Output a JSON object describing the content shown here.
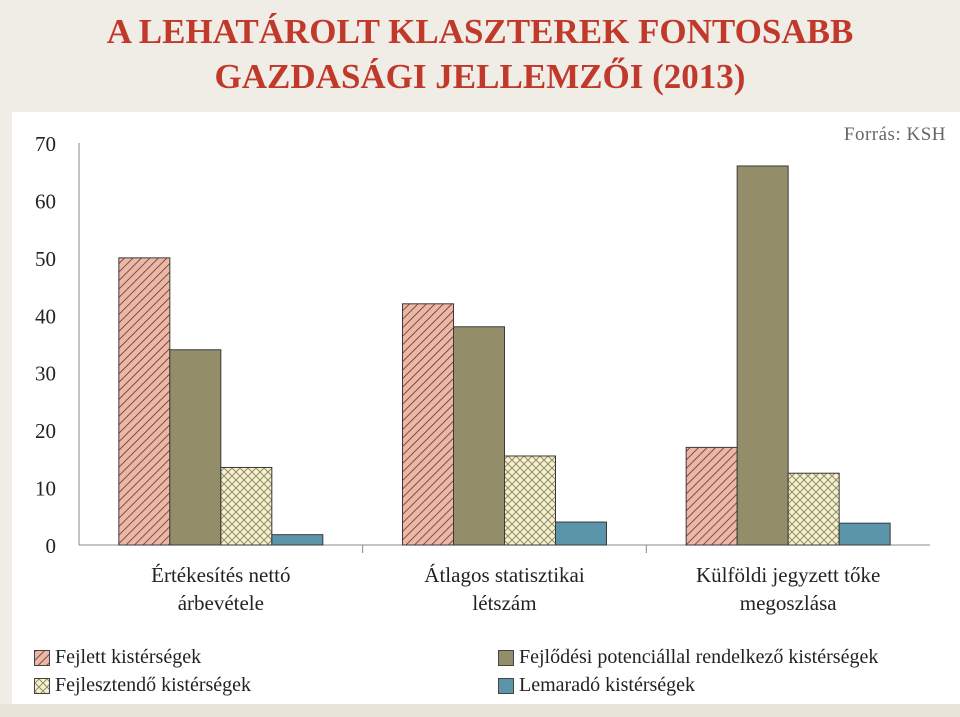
{
  "title_line1": "A LEHATÁROLT KLASZTEREK FONTOSABB",
  "title_line2": "GAZDASÁGI JELLEMZŐI (2013)",
  "source": "Forrás: KSH",
  "colors": {
    "title": "#c0392b",
    "fejlett": "#e8b8a8",
    "fejlett_hatch": "#7a2a1a",
    "potencial": "#948d6a",
    "fejlesztendo": "#f4efcc",
    "fejlesztendo_hatch": "#8a8660",
    "lemarado": "#5b95aa"
  },
  "chart_data": {
    "type": "bar",
    "categories": [
      [
        "Értékesítés nettó",
        "árbevétele"
      ],
      [
        "Átlagos statisztikai",
        "létszám"
      ],
      [
        "Külföldi jegyzett tőke",
        "megoszlása"
      ]
    ],
    "series": [
      {
        "name": "Fejlett kistérségek",
        "values": [
          50,
          42,
          17
        ]
      },
      {
        "name": "Fejlődési potenciállal rendelkező kistérségek",
        "values": [
          34,
          38,
          66
        ]
      },
      {
        "name": "Fejlesztendő kistérségek",
        "values": [
          13.5,
          15.5,
          12.5
        ]
      },
      {
        "name": "Lemaradó kistérségek",
        "values": [
          1.8,
          4,
          3.8
        ]
      }
    ],
    "ylim": [
      0,
      70
    ],
    "yticks": [
      "0",
      "10",
      "20",
      "30",
      "40",
      "50",
      "60",
      "70"
    ],
    "grid": false,
    "legend_position": "bottom"
  }
}
